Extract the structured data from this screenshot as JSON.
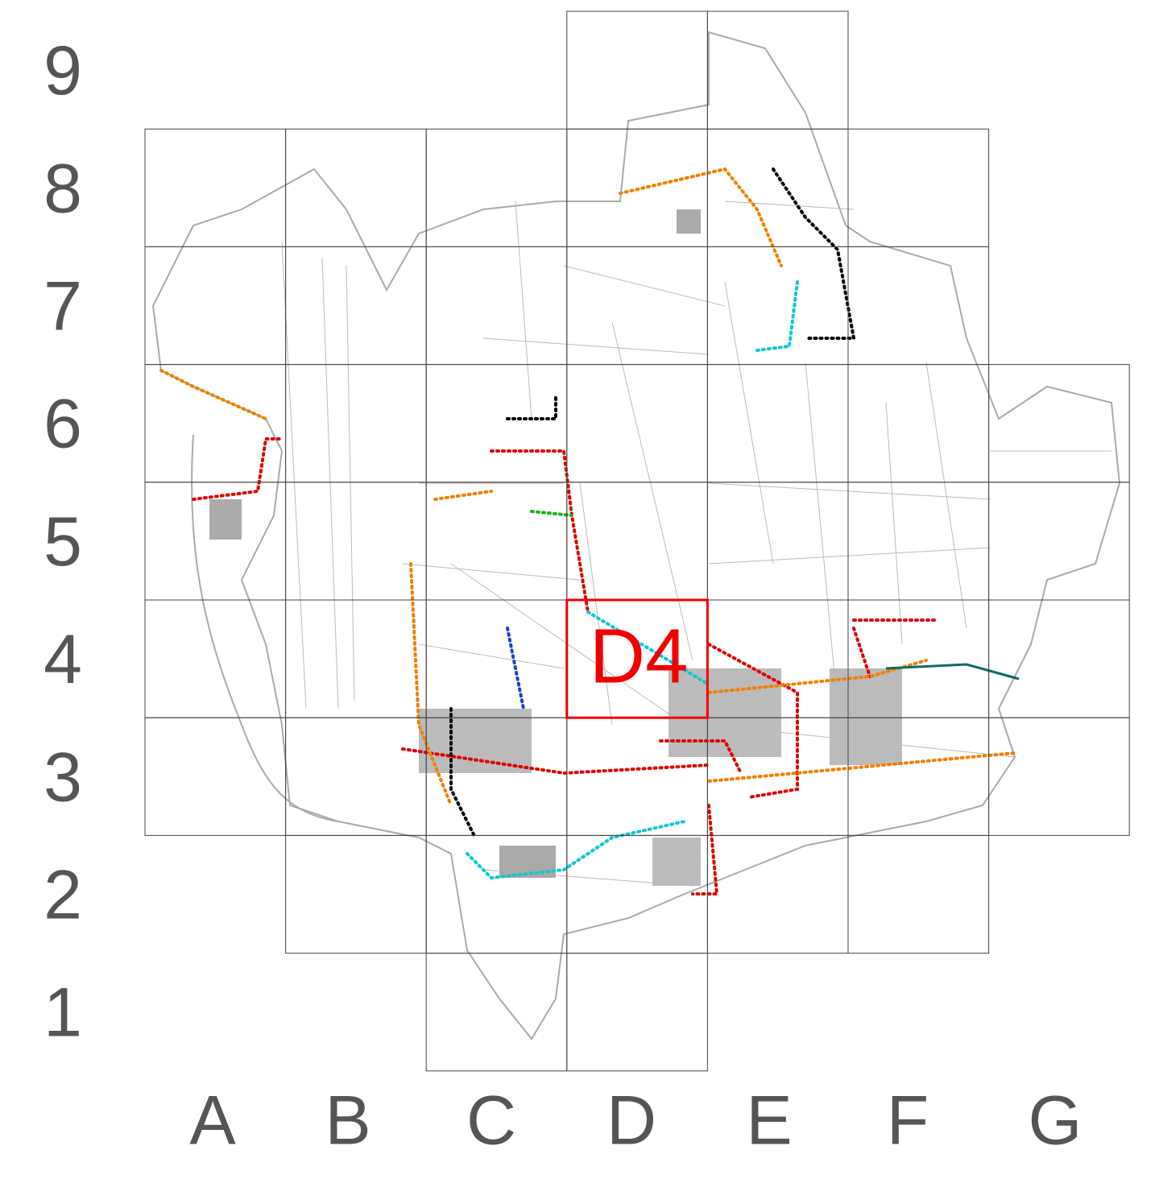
{
  "rows": [
    "9",
    "8",
    "7",
    "6",
    "5",
    "4",
    "3",
    "2",
    "1"
  ],
  "columns": [
    "A",
    "B",
    "C",
    "D",
    "E",
    "F",
    "G"
  ],
  "highlight": "D4"
}
